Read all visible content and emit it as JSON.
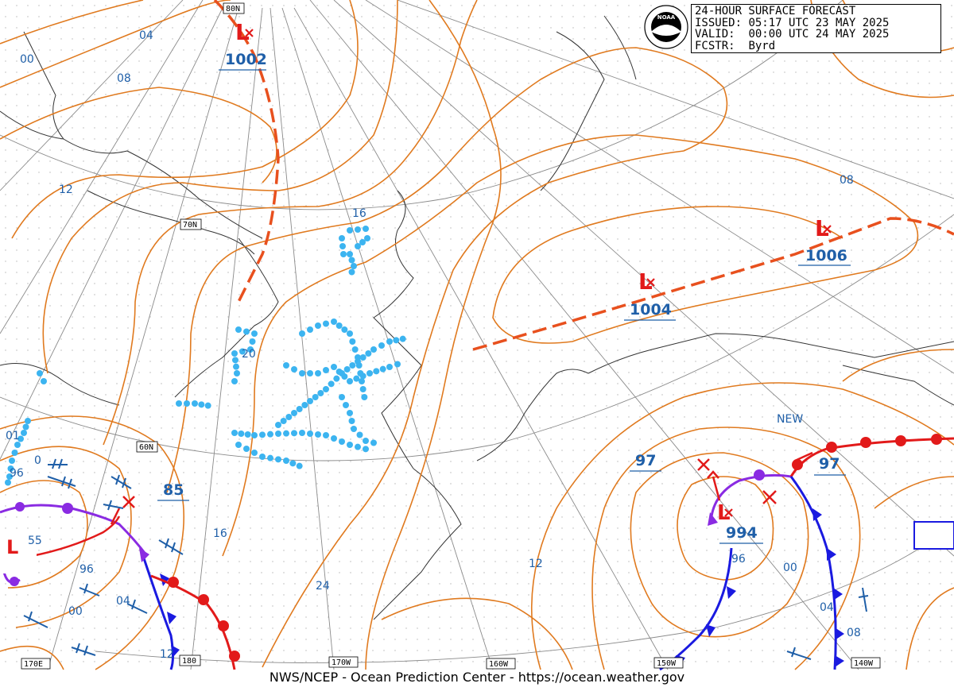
{
  "header": {
    "title": "24-HOUR SURFACE FORECAST",
    "issued_label": "ISSUED:",
    "issued_value": "05:17 UTC 23 MAY 2025",
    "valid_label": "VALID:",
    "valid_value": "00:00 UTC 24 MAY 2025",
    "forecaster_label": "FCSTR:",
    "forecaster_value": "Byrd"
  },
  "logo": {
    "icon": "noaa-logo-icon",
    "text": "NOAA"
  },
  "footer": {
    "credit": "NWS/NCEP - Ocean Prediction Center - https://ocean.weather.gov"
  },
  "graticule": {
    "latitudes": [
      "80N",
      "70N",
      "60N"
    ],
    "longitudes": [
      "170E",
      "180",
      "170W",
      "160W",
      "150W",
      "140W"
    ]
  },
  "low_centers": [
    {
      "symbol": "L",
      "pressure": "1002"
    },
    {
      "symbol": "L",
      "pressure": "1004"
    },
    {
      "symbol": "L",
      "pressure": "1006"
    },
    {
      "symbol": "L",
      "pressure": "994"
    },
    {
      "symbol": "L",
      "pressure": "55"
    }
  ],
  "other_labels": {
    "new": "NEW",
    "p97_a": "97",
    "p97_b": "97",
    "p85": "85"
  },
  "isobar_labels": [
    "04",
    "00",
    "08",
    "12",
    "16",
    "20",
    "16",
    "24",
    "12",
    "08",
    "96",
    "00",
    "04",
    "08",
    "96",
    "00",
    "04",
    "12",
    "01",
    "0",
    "96"
  ],
  "colors": {
    "isobar": "#e07a1f",
    "label": "#1f5fa8",
    "low": "#e21a1a",
    "trough": "#e8501e",
    "cold_front": "#1a1ae0",
    "warm_front": "#e21a1a",
    "occluded_front": "#8a2be2",
    "ice_edge": "#3cb4f0",
    "coast": "#333333",
    "grid": "#9a9a9a",
    "wind_barb": "#1f5fa8"
  }
}
